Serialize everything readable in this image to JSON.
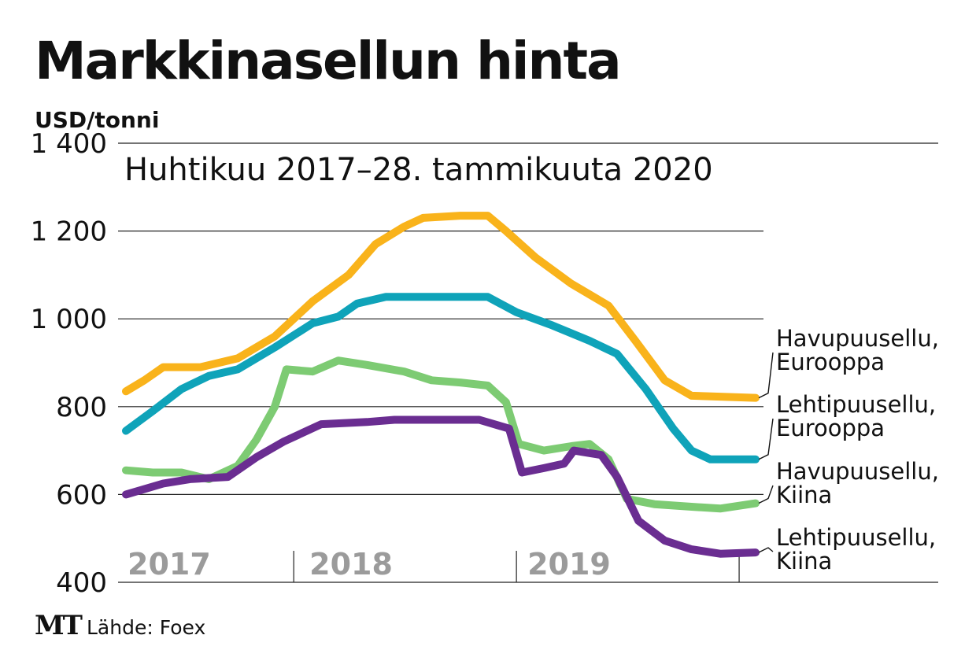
{
  "chart_data": {
    "type": "line",
    "title": "Markkinasellun hinta",
    "unit_label": "USD/tonni",
    "subtitle": "Huhtikuu 2017–28. tammikuuta 2020",
    "x_ticks": [
      "2017",
      "2018",
      "2019"
    ],
    "x_range": [
      "2017-04-01",
      "2020-01-28"
    ],
    "y_ticks": [
      "1 400",
      "1 200",
      "1 000",
      "800",
      "600",
      "400"
    ],
    "y_tick_values": [
      1400,
      1200,
      1000,
      800,
      600,
      400
    ],
    "ylim": [
      400,
      1400
    ],
    "grid": true,
    "series": [
      {
        "name": "Havupuusellu, Eurooppa",
        "label_lines": [
          "Havupuusellu,",
          "Eurooppa"
        ],
        "color": "#f9b31b",
        "points": [
          [
            "2017-04-01",
            835
          ],
          [
            "2017-05-01",
            860
          ],
          [
            "2017-06-01",
            890
          ],
          [
            "2017-08-01",
            890
          ],
          [
            "2017-10-01",
            910
          ],
          [
            "2017-12-01",
            960
          ],
          [
            "2018-01-01",
            1000
          ],
          [
            "2018-02-01",
            1040
          ],
          [
            "2018-04-01",
            1100
          ],
          [
            "2018-05-15",
            1170
          ],
          [
            "2018-07-01",
            1210
          ],
          [
            "2018-08-01",
            1230
          ],
          [
            "2018-10-01",
            1235
          ],
          [
            "2018-11-15",
            1235
          ],
          [
            "2018-12-15",
            1200
          ],
          [
            "2019-02-01",
            1140
          ],
          [
            "2019-04-01",
            1080
          ],
          [
            "2019-06-01",
            1030
          ],
          [
            "2019-07-15",
            950
          ],
          [
            "2019-09-01",
            860
          ],
          [
            "2019-10-15",
            825
          ],
          [
            "2020-01-28",
            820
          ]
        ]
      },
      {
        "name": "Lehtipuusellu, Eurooppa",
        "label_lines": [
          "Lehtipuusellu,",
          "Eurooppa"
        ],
        "color": "#0fa3b9",
        "points": [
          [
            "2017-04-01",
            745
          ],
          [
            "2017-05-15",
            790
          ],
          [
            "2017-07-01",
            840
          ],
          [
            "2017-08-15",
            870
          ],
          [
            "2017-10-01",
            885
          ],
          [
            "2017-12-01",
            935
          ],
          [
            "2018-02-01",
            990
          ],
          [
            "2018-03-15",
            1005
          ],
          [
            "2018-04-15",
            1035
          ],
          [
            "2018-06-01",
            1050
          ],
          [
            "2018-11-15",
            1050
          ],
          [
            "2019-01-01",
            1015
          ],
          [
            "2019-03-01",
            985
          ],
          [
            "2019-05-01",
            950
          ],
          [
            "2019-06-15",
            920
          ],
          [
            "2019-08-01",
            840
          ],
          [
            "2019-09-15",
            750
          ],
          [
            "2019-10-15",
            700
          ],
          [
            "2019-11-15",
            680
          ],
          [
            "2020-01-28",
            680
          ]
        ]
      },
      {
        "name": "Havupuusellu, Kiina",
        "label_lines": [
          "Havupuusellu,",
          "Kiina"
        ],
        "color": "#7dcb73",
        "points": [
          [
            "2017-04-01",
            655
          ],
          [
            "2017-05-15",
            650
          ],
          [
            "2017-07-01",
            650
          ],
          [
            "2017-08-15",
            635
          ],
          [
            "2017-10-01",
            665
          ],
          [
            "2017-11-01",
            725
          ],
          [
            "2017-12-01",
            800
          ],
          [
            "2017-12-20",
            885
          ],
          [
            "2018-02-01",
            880
          ],
          [
            "2018-03-15",
            905
          ],
          [
            "2018-05-01",
            895
          ],
          [
            "2018-07-01",
            880
          ],
          [
            "2018-08-15",
            860
          ],
          [
            "2018-10-01",
            855
          ],
          [
            "2018-11-15",
            848
          ],
          [
            "2018-12-15",
            810
          ],
          [
            "2019-01-05",
            715
          ],
          [
            "2019-02-15",
            700
          ],
          [
            "2019-04-01",
            710
          ],
          [
            "2019-05-01",
            715
          ],
          [
            "2019-06-01",
            680
          ],
          [
            "2019-07-01",
            590
          ],
          [
            "2019-08-15",
            578
          ],
          [
            "2019-10-15",
            572
          ],
          [
            "2019-12-01",
            568
          ],
          [
            "2020-01-28",
            580
          ]
        ]
      },
      {
        "name": "Lehtipuusellu, Kiina",
        "label_lines": [
          "Lehtipuusellu,",
          "Kiina"
        ],
        "color": "#6a2d91",
        "points": [
          [
            "2017-04-01",
            600
          ],
          [
            "2017-06-01",
            625
          ],
          [
            "2017-07-15",
            635
          ],
          [
            "2017-09-15",
            640
          ],
          [
            "2017-11-01",
            685
          ],
          [
            "2017-12-15",
            720
          ],
          [
            "2018-02-15",
            760
          ],
          [
            "2018-05-01",
            765
          ],
          [
            "2018-06-15",
            770
          ],
          [
            "2018-11-01",
            770
          ],
          [
            "2018-12-20",
            750
          ],
          [
            "2019-01-10",
            650
          ],
          [
            "2019-02-15",
            660
          ],
          [
            "2019-03-20",
            670
          ],
          [
            "2019-04-05",
            700
          ],
          [
            "2019-05-20",
            690
          ],
          [
            "2019-06-15",
            640
          ],
          [
            "2019-07-20",
            540
          ],
          [
            "2019-09-01",
            495
          ],
          [
            "2019-10-15",
            475
          ],
          [
            "2019-12-01",
            465
          ],
          [
            "2020-01-28",
            468
          ]
        ]
      }
    ]
  },
  "footer": {
    "logo": "MT",
    "source": "Lähde: Foex"
  }
}
